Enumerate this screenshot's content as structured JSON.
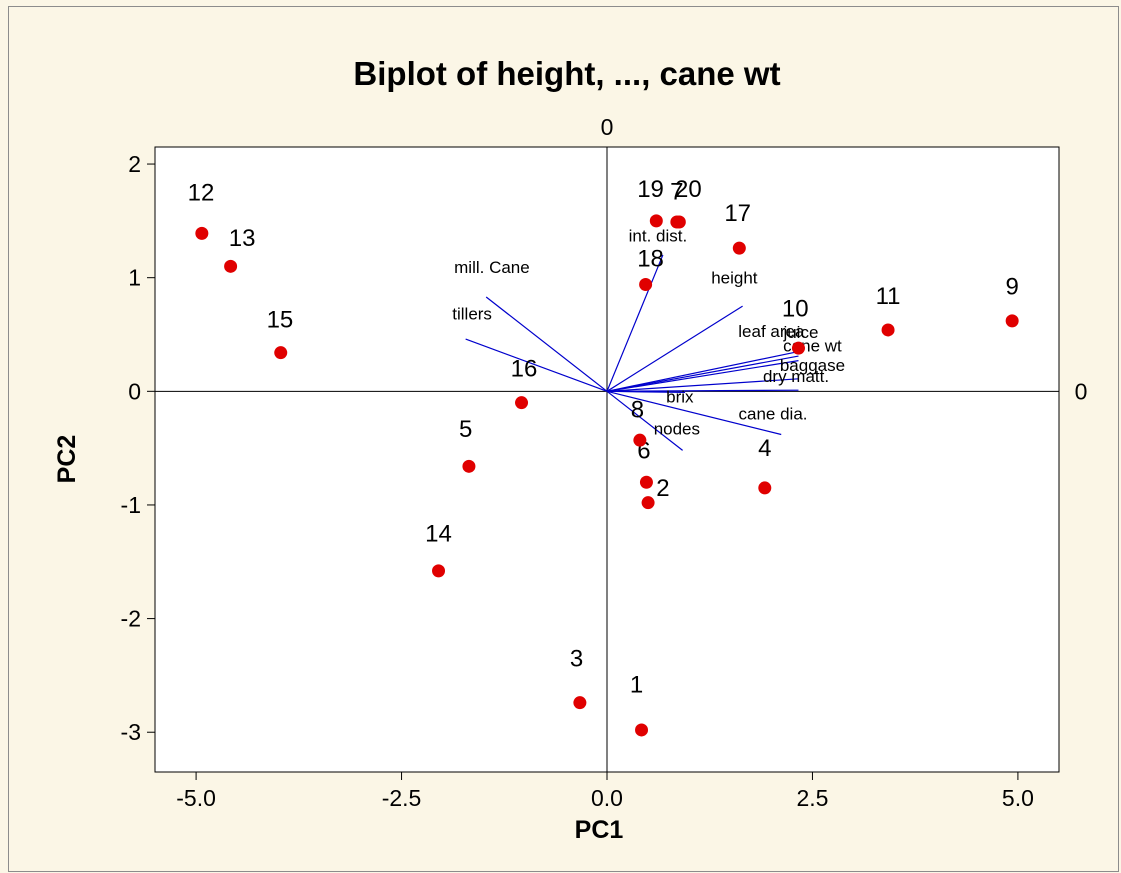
{
  "chart_data": {
    "type": "scatter",
    "title": "Biplot of height, ..., cane wt",
    "xlabel": "PC1",
    "ylabel": "PC2",
    "xlim": [
      -5.5,
      5.5
    ],
    "ylim": [
      -3.35,
      2.15
    ],
    "xticks": [
      "-5.0",
      "-2.5",
      "0.0",
      "2.5",
      "5.0"
    ],
    "xtick_values": [
      -5,
      -2.5,
      0,
      2.5,
      5
    ],
    "yticks": [
      "-3",
      "-2",
      "-1",
      "0",
      "1",
      "2"
    ],
    "ytick_values": [
      -3,
      -2,
      -1,
      0,
      1,
      2
    ],
    "reference_line_labels": {
      "vertical": "0",
      "horizontal": "0"
    },
    "grid": false,
    "legend": "none",
    "point_color": "#e00000",
    "vector_color": "#0000cc",
    "points": [
      {
        "label": "1",
        "x": 0.42,
        "y": -2.98
      },
      {
        "label": "2",
        "x": 0.5,
        "y": -0.98
      },
      {
        "label": "3",
        "x": -0.33,
        "y": -2.74
      },
      {
        "label": "4",
        "x": 1.92,
        "y": -0.85
      },
      {
        "label": "5",
        "x": -1.68,
        "y": -0.66
      },
      {
        "label": "6",
        "x": 0.48,
        "y": -0.8
      },
      {
        "label": "7",
        "x": 0.85,
        "y": 1.49
      },
      {
        "label": "8",
        "x": 0.4,
        "y": -0.43
      },
      {
        "label": "9",
        "x": 4.93,
        "y": 0.62
      },
      {
        "label": "10",
        "x": 2.33,
        "y": 0.38
      },
      {
        "label": "11",
        "x": 3.42,
        "y": 0.54
      },
      {
        "label": "12",
        "x": -4.93,
        "y": 1.39
      },
      {
        "label": "13",
        "x": -4.58,
        "y": 1.1
      },
      {
        "label": "14",
        "x": -2.05,
        "y": -1.58
      },
      {
        "label": "15",
        "x": -3.97,
        "y": 0.34
      },
      {
        "label": "16",
        "x": -1.04,
        "y": -0.1
      },
      {
        "label": "17",
        "x": 1.61,
        "y": 1.26
      },
      {
        "label": "18",
        "x": 0.47,
        "y": 0.94
      },
      {
        "label": "19",
        "x": 0.6,
        "y": 1.5
      },
      {
        "label": "20",
        "x": 0.88,
        "y": 1.49
      }
    ],
    "vectors": [
      {
        "name": "mill. Cane",
        "x": -1.47,
        "y": 0.83
      },
      {
        "name": "tillers",
        "x": -1.72,
        "y": 0.46
      },
      {
        "name": "int. dist.",
        "x": 0.68,
        "y": 1.2
      },
      {
        "name": "height",
        "x": 1.65,
        "y": 0.75
      },
      {
        "name": "leaf area",
        "x": 2.33,
        "y": 0.35
      },
      {
        "name": "juice",
        "x": 2.33,
        "y": 0.31
      },
      {
        "name": "cane wt",
        "x": 2.33,
        "y": 0.27
      },
      {
        "name": "baggase",
        "x": 2.33,
        "y": 0.11
      },
      {
        "name": "dry matt.",
        "x": 2.33,
        "y": 0.01
      },
      {
        "name": "brix",
        "x": 0.95,
        "y": -0.01
      },
      {
        "name": "cane dia.",
        "x": 2.12,
        "y": -0.38
      },
      {
        "name": "nodes",
        "x": 0.92,
        "y": -0.52
      }
    ]
  }
}
